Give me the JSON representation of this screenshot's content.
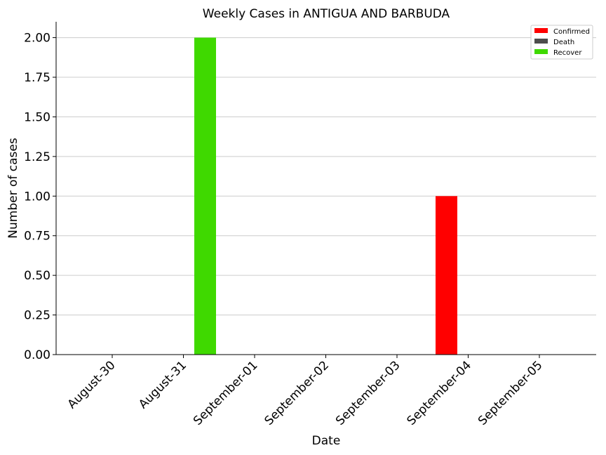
{
  "chart_data": {
    "type": "bar",
    "title": "Weekly Cases in ANTIGUA AND BARBUDA",
    "xlabel": "Date",
    "ylabel": "Number of cases",
    "categories": [
      "August-30",
      "August-31",
      "September-01",
      "September-02",
      "September-03",
      "September-04",
      "September-05"
    ],
    "series": [
      {
        "name": "Confirmed",
        "color": "#ff0000",
        "values": [
          0,
          0,
          0,
          0,
          0,
          1,
          0
        ]
      },
      {
        "name": "Death",
        "color": "#4d4d4d",
        "values": [
          0,
          0,
          0,
          0,
          0,
          0,
          0
        ]
      },
      {
        "name": "Recover",
        "color": "#3fd900",
        "values": [
          0,
          2,
          0,
          0,
          0,
          0,
          0
        ]
      }
    ],
    "ylim": [
      0,
      2.1
    ],
    "yticks": [
      "0.00",
      "0.25",
      "0.50",
      "0.75",
      "1.00",
      "1.25",
      "1.50",
      "1.75",
      "2.00"
    ],
    "grid": "horizontal",
    "legend_position": "top-right"
  }
}
